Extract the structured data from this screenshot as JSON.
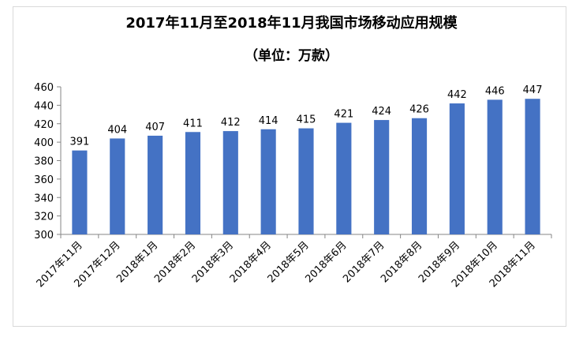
{
  "chart_data": {
    "type": "bar",
    "title": "2017年11月至2018年11月我国市场移动应用规模",
    "subtitle": "（单位：万款）",
    "categories": [
      "2017年11月",
      "2017年12月",
      "2018年1月",
      "2018年2月",
      "2018年3月",
      "2018年4月",
      "2018年5月",
      "2018年6月",
      "2018年7月",
      "2018年8月",
      "2018年9月",
      "2018年10月",
      "2018年11月"
    ],
    "values": [
      391,
      404,
      407,
      411,
      412,
      414,
      415,
      421,
      424,
      426,
      442,
      446,
      447
    ],
    "ylim": [
      300,
      460
    ],
    "yticks": [
      300,
      320,
      340,
      360,
      380,
      400,
      420,
      440,
      460
    ],
    "grid": false,
    "data_labels": true,
    "bar_color": "#4472c4"
  }
}
